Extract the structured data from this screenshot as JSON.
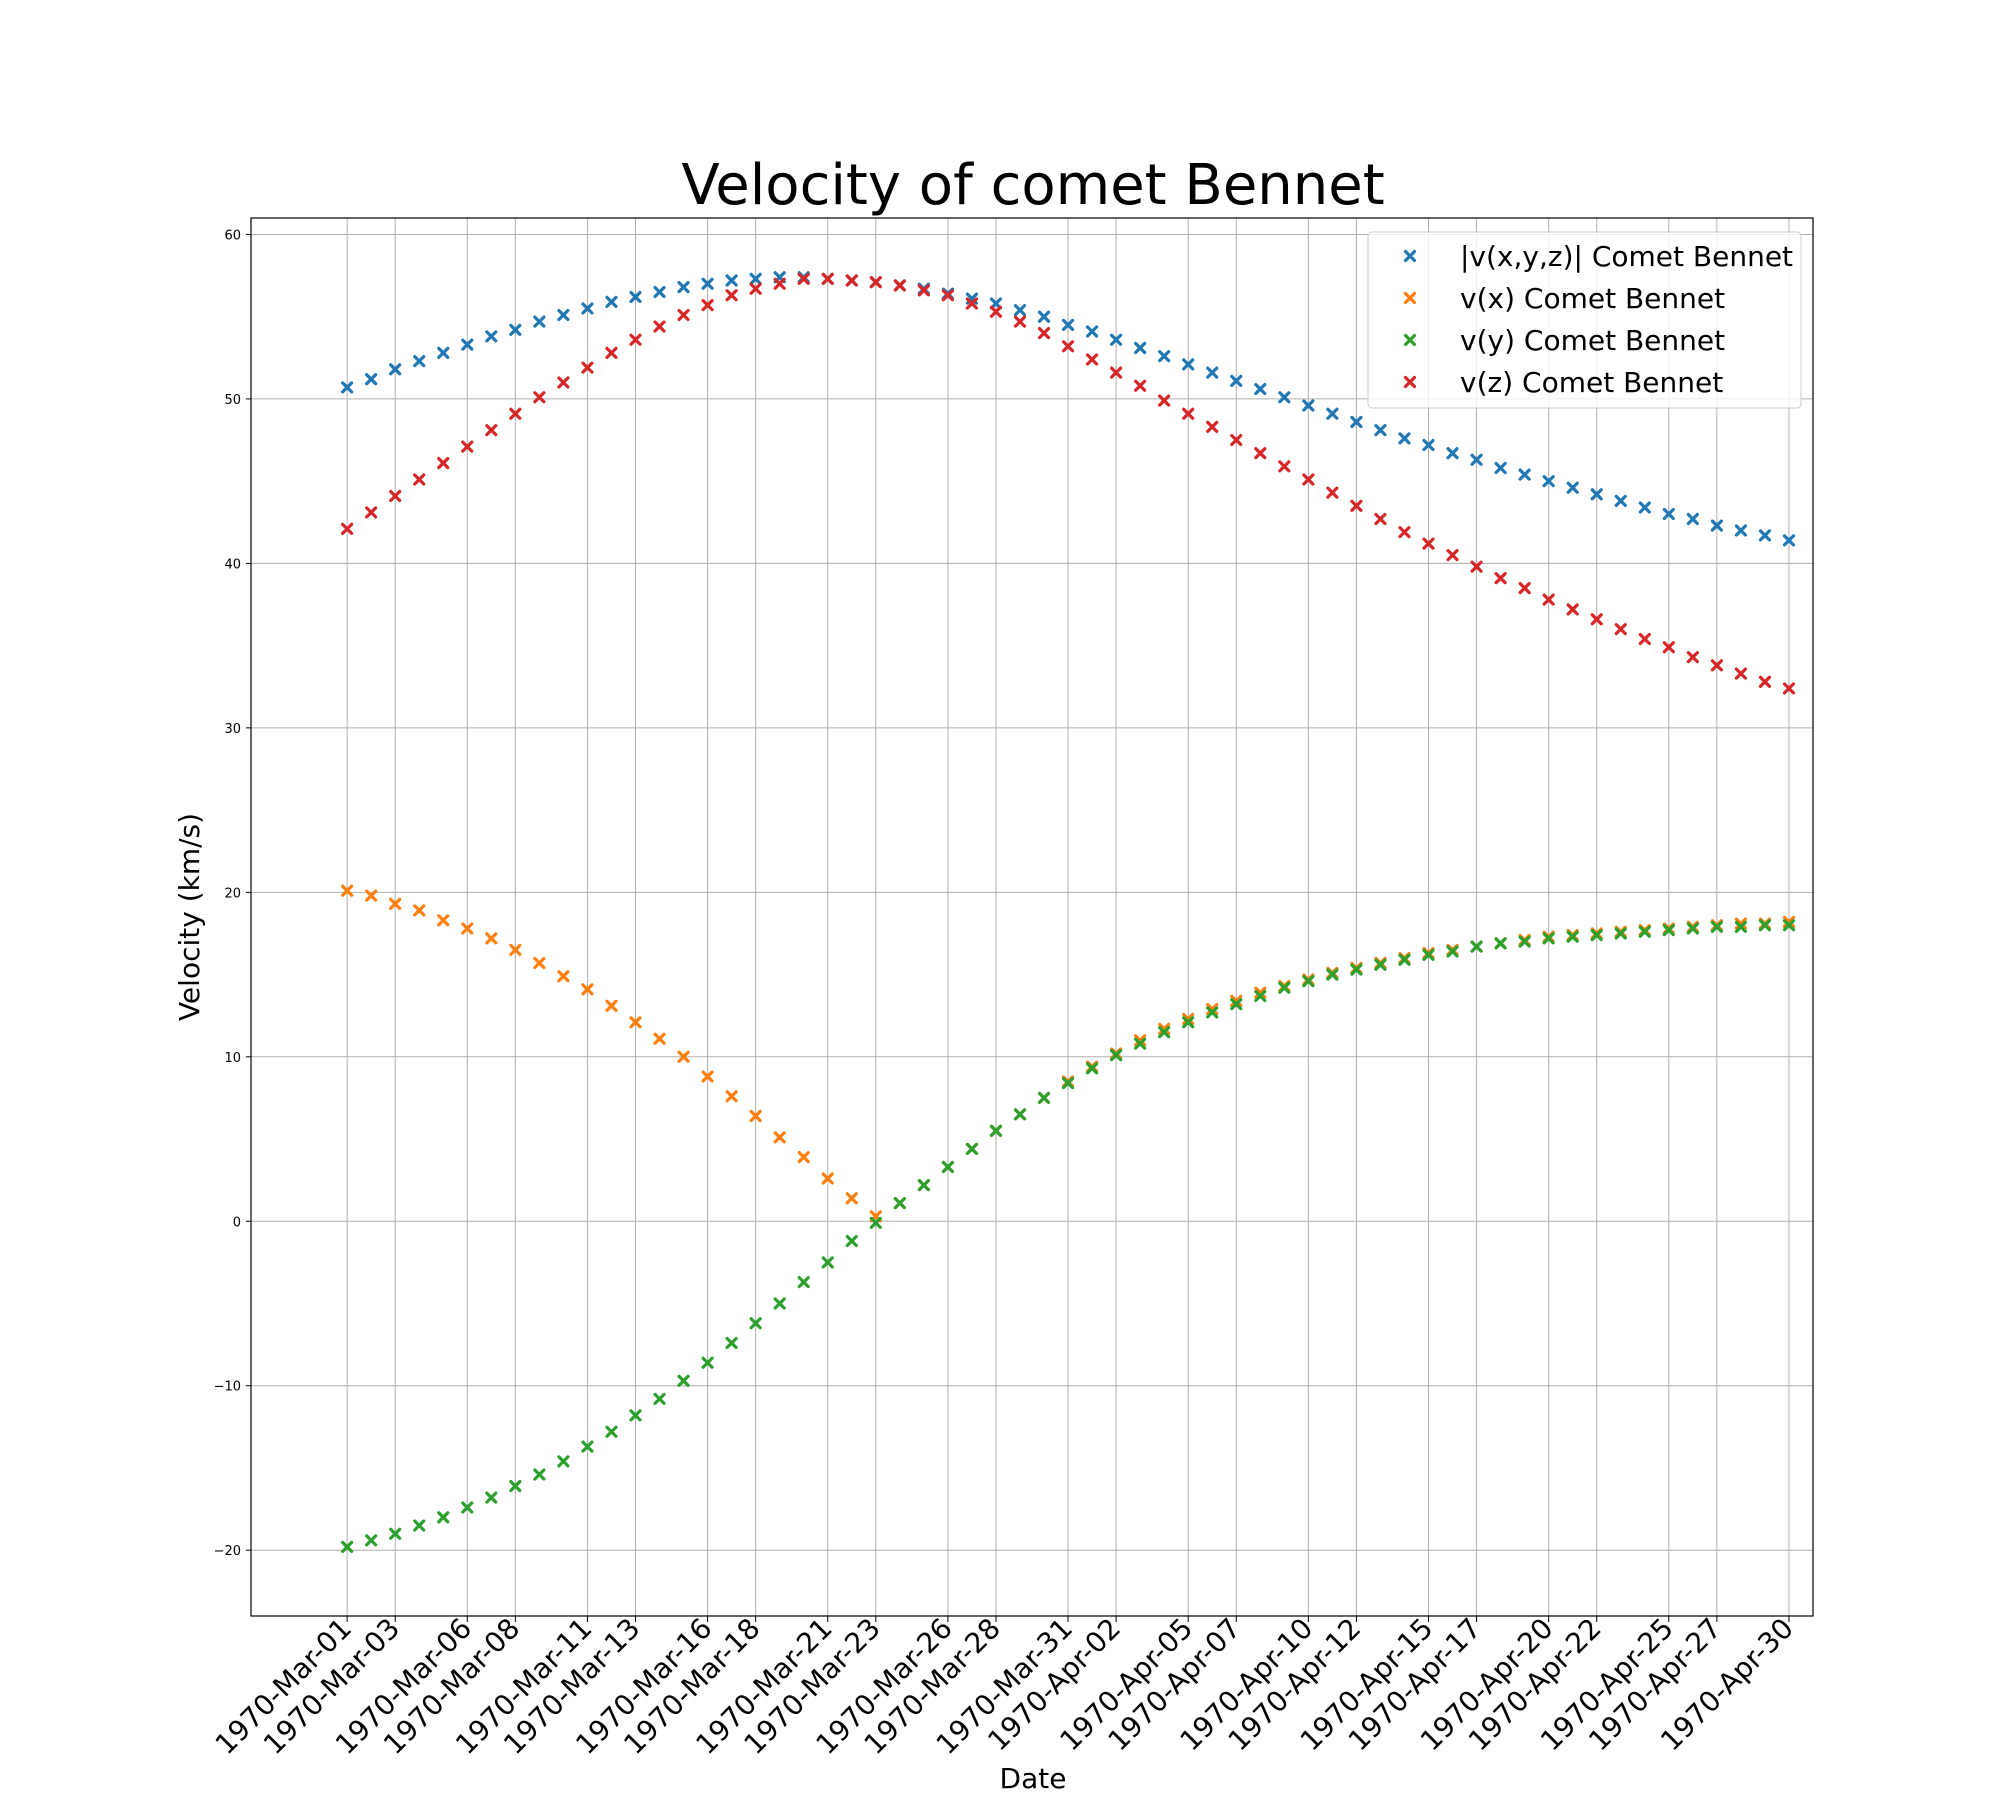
{
  "chart_data": {
    "type": "scatter",
    "title": "Velocity of comet Bennet",
    "xlabel": "Date",
    "ylabel": "Velocity (km/s)",
    "ylim": [
      -24,
      61
    ],
    "xlim": [
      "1970-02-25",
      "1970-May-01"
    ],
    "grid": true,
    "legend_position": "top-right",
    "marker": "x",
    "x_start": "1970-03-01",
    "x_step_days": 1,
    "y_ticks": [
      -20,
      -10,
      0,
      10,
      20,
      30,
      40,
      50,
      60
    ],
    "y_tick_labels": [
      "−20",
      "−10",
      "0",
      "10",
      "20",
      "30",
      "40",
      "50",
      "60"
    ],
    "x_tick_labels": [
      "1970-Mar-01",
      "1970-Mar-03",
      "1970-Mar-06",
      "1970-Mar-08",
      "1970-Mar-11",
      "1970-Mar-13",
      "1970-Mar-16",
      "1970-Mar-18",
      "1970-Mar-21",
      "1970-Mar-23",
      "1970-Mar-26",
      "1970-Mar-28",
      "1970-Mar-31",
      "1970-Apr-02",
      "1970-Apr-05",
      "1970-Apr-07",
      "1970-Apr-10",
      "1970-Apr-12",
      "1970-Apr-15",
      "1970-Apr-17",
      "1970-Apr-20",
      "1970-Apr-22",
      "1970-Apr-25",
      "1970-Apr-27",
      "1970-Apr-30"
    ],
    "x_tick_dates": [
      "1970-03-01",
      "1970-03-03",
      "1970-03-06",
      "1970-03-08",
      "1970-03-11",
      "1970-03-13",
      "1970-03-16",
      "1970-03-18",
      "1970-03-21",
      "1970-03-23",
      "1970-03-26",
      "1970-03-28",
      "1970-03-31",
      "1970-04-02",
      "1970-04-05",
      "1970-04-07",
      "1970-04-10",
      "1970-04-12",
      "1970-04-15",
      "1970-04-17",
      "1970-04-20",
      "1970-04-22",
      "1970-04-25",
      "1970-04-27",
      "1970-04-30"
    ],
    "series": [
      {
        "name": "|v(x,y,z)| Comet Bennet",
        "color": "#1f77b4",
        "points": [
          [
            "1970-03-01",
            50.7
          ],
          [
            "1970-03-02",
            51.2
          ],
          [
            "1970-03-03",
            51.8
          ],
          [
            "1970-03-04",
            52.3
          ],
          [
            "1970-03-05",
            52.8
          ],
          [
            "1970-03-06",
            53.3
          ],
          [
            "1970-03-07",
            53.8
          ],
          [
            "1970-03-08",
            54.2
          ],
          [
            "1970-03-09",
            54.7
          ],
          [
            "1970-03-10",
            55.1
          ],
          [
            "1970-03-11",
            55.5
          ],
          [
            "1970-03-12",
            55.9
          ],
          [
            "1970-03-13",
            56.2
          ],
          [
            "1970-03-14",
            56.5
          ],
          [
            "1970-03-15",
            56.8
          ],
          [
            "1970-03-16",
            57.0
          ],
          [
            "1970-03-17",
            57.2
          ],
          [
            "1970-03-18",
            57.3
          ],
          [
            "1970-03-19",
            57.4
          ],
          [
            "1970-03-20",
            57.4
          ],
          [
            "1970-03-21",
            57.3
          ],
          [
            "1970-03-22",
            57.2
          ],
          [
            "1970-03-23",
            57.1
          ],
          [
            "1970-03-24",
            56.9
          ],
          [
            "1970-03-25",
            56.7
          ],
          [
            "1970-03-26",
            56.4
          ],
          [
            "1970-03-27",
            56.1
          ],
          [
            "1970-03-28",
            55.8
          ],
          [
            "1970-03-29",
            55.4
          ],
          [
            "1970-03-30",
            55.0
          ],
          [
            "1970-03-31",
            54.5
          ],
          [
            "1970-04-01",
            54.1
          ],
          [
            "1970-04-02",
            53.6
          ],
          [
            "1970-04-03",
            53.1
          ],
          [
            "1970-04-04",
            52.6
          ],
          [
            "1970-04-05",
            52.1
          ],
          [
            "1970-04-06",
            51.6
          ],
          [
            "1970-04-07",
            51.1
          ],
          [
            "1970-04-08",
            50.6
          ],
          [
            "1970-04-09",
            50.1
          ],
          [
            "1970-04-10",
            49.6
          ],
          [
            "1970-04-11",
            49.1
          ],
          [
            "1970-04-12",
            48.6
          ],
          [
            "1970-04-13",
            48.1
          ],
          [
            "1970-04-14",
            47.6
          ],
          [
            "1970-04-15",
            47.2
          ],
          [
            "1970-04-16",
            46.7
          ],
          [
            "1970-04-17",
            46.3
          ],
          [
            "1970-04-18",
            45.8
          ],
          [
            "1970-04-19",
            45.4
          ],
          [
            "1970-04-20",
            45.0
          ],
          [
            "1970-04-21",
            44.6
          ],
          [
            "1970-04-22",
            44.2
          ],
          [
            "1970-04-23",
            43.8
          ],
          [
            "1970-04-24",
            43.4
          ],
          [
            "1970-04-25",
            43.0
          ],
          [
            "1970-04-26",
            42.7
          ],
          [
            "1970-04-27",
            42.3
          ],
          [
            "1970-04-28",
            42.0
          ],
          [
            "1970-04-29",
            41.7
          ],
          [
            "1970-04-30",
            41.4
          ]
        ]
      },
      {
        "name": "v(x) Comet Bennet",
        "color": "#ff7f0e",
        "points": [
          [
            "1970-03-01",
            20.1
          ],
          [
            "1970-03-02",
            19.8
          ],
          [
            "1970-03-03",
            19.3
          ],
          [
            "1970-03-04",
            18.9
          ],
          [
            "1970-03-05",
            18.3
          ],
          [
            "1970-03-06",
            17.8
          ],
          [
            "1970-03-07",
            17.2
          ],
          [
            "1970-03-08",
            16.5
          ],
          [
            "1970-03-09",
            15.7
          ],
          [
            "1970-03-10",
            14.9
          ],
          [
            "1970-03-11",
            14.1
          ],
          [
            "1970-03-12",
            13.1
          ],
          [
            "1970-03-13",
            12.1
          ],
          [
            "1970-03-14",
            11.1
          ],
          [
            "1970-03-15",
            10.0
          ],
          [
            "1970-03-16",
            8.8
          ],
          [
            "1970-03-17",
            7.6
          ],
          [
            "1970-03-18",
            6.4
          ],
          [
            "1970-03-19",
            5.1
          ],
          [
            "1970-03-20",
            3.9
          ],
          [
            "1970-03-21",
            2.6
          ],
          [
            "1970-03-22",
            1.4
          ],
          [
            "1970-03-23",
            0.3
          ],
          [
            "1970-03-24",
            1.1
          ],
          [
            "1970-03-25",
            2.2
          ],
          [
            "1970-03-26",
            3.3
          ],
          [
            "1970-03-27",
            4.4
          ],
          [
            "1970-03-28",
            5.5
          ],
          [
            "1970-03-29",
            6.5
          ],
          [
            "1970-03-30",
            7.5
          ],
          [
            "1970-03-31",
            8.5
          ],
          [
            "1970-04-01",
            9.4
          ],
          [
            "1970-04-02",
            10.2
          ],
          [
            "1970-04-03",
            11.0
          ],
          [
            "1970-04-04",
            11.7
          ],
          [
            "1970-04-05",
            12.3
          ],
          [
            "1970-04-06",
            12.9
          ],
          [
            "1970-04-07",
            13.4
          ],
          [
            "1970-04-08",
            13.9
          ],
          [
            "1970-04-09",
            14.3
          ],
          [
            "1970-04-10",
            14.7
          ],
          [
            "1970-04-11",
            15.1
          ],
          [
            "1970-04-12",
            15.4
          ],
          [
            "1970-04-13",
            15.7
          ],
          [
            "1970-04-14",
            16.0
          ],
          [
            "1970-04-15",
            16.3
          ],
          [
            "1970-04-16",
            16.5
          ],
          [
            "1970-04-17",
            16.7
          ],
          [
            "1970-04-18",
            16.9
          ],
          [
            "1970-04-19",
            17.1
          ],
          [
            "1970-04-20",
            17.3
          ],
          [
            "1970-04-21",
            17.4
          ],
          [
            "1970-04-22",
            17.5
          ],
          [
            "1970-04-23",
            17.6
          ],
          [
            "1970-04-24",
            17.7
          ],
          [
            "1970-04-25",
            17.8
          ],
          [
            "1970-04-26",
            17.9
          ],
          [
            "1970-04-27",
            18.0
          ],
          [
            "1970-04-28",
            18.1
          ],
          [
            "1970-04-29",
            18.1
          ],
          [
            "1970-04-30",
            18.2
          ]
        ]
      },
      {
        "name": "v(y) Comet Bennet",
        "color": "#2ca02c",
        "points": [
          [
            "1970-03-01",
            -19.8
          ],
          [
            "1970-03-02",
            -19.4
          ],
          [
            "1970-03-03",
            -19.0
          ],
          [
            "1970-03-04",
            -18.5
          ],
          [
            "1970-03-05",
            -18.0
          ],
          [
            "1970-03-06",
            -17.4
          ],
          [
            "1970-03-07",
            -16.8
          ],
          [
            "1970-03-08",
            -16.1
          ],
          [
            "1970-03-09",
            -15.4
          ],
          [
            "1970-03-10",
            -14.6
          ],
          [
            "1970-03-11",
            -13.7
          ],
          [
            "1970-03-12",
            -12.8
          ],
          [
            "1970-03-13",
            -11.8
          ],
          [
            "1970-03-14",
            -10.8
          ],
          [
            "1970-03-15",
            -9.7
          ],
          [
            "1970-03-16",
            -8.6
          ],
          [
            "1970-03-17",
            -7.4
          ],
          [
            "1970-03-18",
            -6.2
          ],
          [
            "1970-03-19",
            -5.0
          ],
          [
            "1970-03-20",
            -3.7
          ],
          [
            "1970-03-21",
            -2.5
          ],
          [
            "1970-03-22",
            -1.2
          ],
          [
            "1970-03-23",
            -0.1
          ],
          [
            "1970-03-24",
            1.1
          ],
          [
            "1970-03-25",
            2.2
          ],
          [
            "1970-03-26",
            3.3
          ],
          [
            "1970-03-27",
            4.4
          ],
          [
            "1970-03-28",
            5.5
          ],
          [
            "1970-03-29",
            6.5
          ],
          [
            "1970-03-30",
            7.5
          ],
          [
            "1970-03-31",
            8.4
          ],
          [
            "1970-04-01",
            9.3
          ],
          [
            "1970-04-02",
            10.1
          ],
          [
            "1970-04-03",
            10.8
          ],
          [
            "1970-04-04",
            11.5
          ],
          [
            "1970-04-05",
            12.1
          ],
          [
            "1970-04-06",
            12.7
          ],
          [
            "1970-04-07",
            13.2
          ],
          [
            "1970-04-08",
            13.7
          ],
          [
            "1970-04-09",
            14.2
          ],
          [
            "1970-04-10",
            14.6
          ],
          [
            "1970-04-11",
            15.0
          ],
          [
            "1970-04-12",
            15.3
          ],
          [
            "1970-04-13",
            15.6
          ],
          [
            "1970-04-14",
            15.9
          ],
          [
            "1970-04-15",
            16.2
          ],
          [
            "1970-04-16",
            16.4
          ],
          [
            "1970-04-17",
            16.7
          ],
          [
            "1970-04-18",
            16.9
          ],
          [
            "1970-04-19",
            17.0
          ],
          [
            "1970-04-20",
            17.2
          ],
          [
            "1970-04-21",
            17.3
          ],
          [
            "1970-04-22",
            17.4
          ],
          [
            "1970-04-23",
            17.5
          ],
          [
            "1970-04-24",
            17.6
          ],
          [
            "1970-04-25",
            17.7
          ],
          [
            "1970-04-26",
            17.8
          ],
          [
            "1970-04-27",
            17.9
          ],
          [
            "1970-04-28",
            17.9
          ],
          [
            "1970-04-29",
            18.0
          ],
          [
            "1970-04-30",
            18.0
          ]
        ]
      },
      {
        "name": "v(z) Comet Bennet",
        "color": "#d62728",
        "points": [
          [
            "1970-03-01",
            42.1
          ],
          [
            "1970-03-02",
            43.1
          ],
          [
            "1970-03-03",
            44.1
          ],
          [
            "1970-03-04",
            45.1
          ],
          [
            "1970-03-05",
            46.1
          ],
          [
            "1970-03-06",
            47.1
          ],
          [
            "1970-03-07",
            48.1
          ],
          [
            "1970-03-08",
            49.1
          ],
          [
            "1970-03-09",
            50.1
          ],
          [
            "1970-03-10",
            51.0
          ],
          [
            "1970-03-11",
            51.9
          ],
          [
            "1970-03-12",
            52.8
          ],
          [
            "1970-03-13",
            53.6
          ],
          [
            "1970-03-14",
            54.4
          ],
          [
            "1970-03-15",
            55.1
          ],
          [
            "1970-03-16",
            55.7
          ],
          [
            "1970-03-17",
            56.3
          ],
          [
            "1970-03-18",
            56.7
          ],
          [
            "1970-03-19",
            57.0
          ],
          [
            "1970-03-20",
            57.3
          ],
          [
            "1970-03-21",
            57.3
          ],
          [
            "1970-03-22",
            57.2
          ],
          [
            "1970-03-23",
            57.1
          ],
          [
            "1970-03-24",
            56.9
          ],
          [
            "1970-03-25",
            56.6
          ],
          [
            "1970-03-26",
            56.3
          ],
          [
            "1970-03-27",
            55.8
          ],
          [
            "1970-03-28",
            55.3
          ],
          [
            "1970-03-29",
            54.7
          ],
          [
            "1970-03-30",
            54.0
          ],
          [
            "1970-03-31",
            53.2
          ],
          [
            "1970-04-01",
            52.4
          ],
          [
            "1970-04-02",
            51.6
          ],
          [
            "1970-04-03",
            50.8
          ],
          [
            "1970-04-04",
            49.9
          ],
          [
            "1970-04-05",
            49.1
          ],
          [
            "1970-04-06",
            48.3
          ],
          [
            "1970-04-07",
            47.5
          ],
          [
            "1970-04-08",
            46.7
          ],
          [
            "1970-04-09",
            45.9
          ],
          [
            "1970-04-10",
            45.1
          ],
          [
            "1970-04-11",
            44.3
          ],
          [
            "1970-04-12",
            43.5
          ],
          [
            "1970-04-13",
            42.7
          ],
          [
            "1970-04-14",
            41.9
          ],
          [
            "1970-04-15",
            41.2
          ],
          [
            "1970-04-16",
            40.5
          ],
          [
            "1970-04-17",
            39.8
          ],
          [
            "1970-04-18",
            39.1
          ],
          [
            "1970-04-19",
            38.5
          ],
          [
            "1970-04-20",
            37.8
          ],
          [
            "1970-04-21",
            37.2
          ],
          [
            "1970-04-22",
            36.6
          ],
          [
            "1970-04-23",
            36.0
          ],
          [
            "1970-04-24",
            35.4
          ],
          [
            "1970-04-25",
            34.9
          ],
          [
            "1970-04-26",
            34.3
          ],
          [
            "1970-04-27",
            33.8
          ],
          [
            "1970-04-28",
            33.3
          ],
          [
            "1970-04-29",
            32.8
          ],
          [
            "1970-04-30",
            32.4
          ]
        ]
      }
    ]
  }
}
